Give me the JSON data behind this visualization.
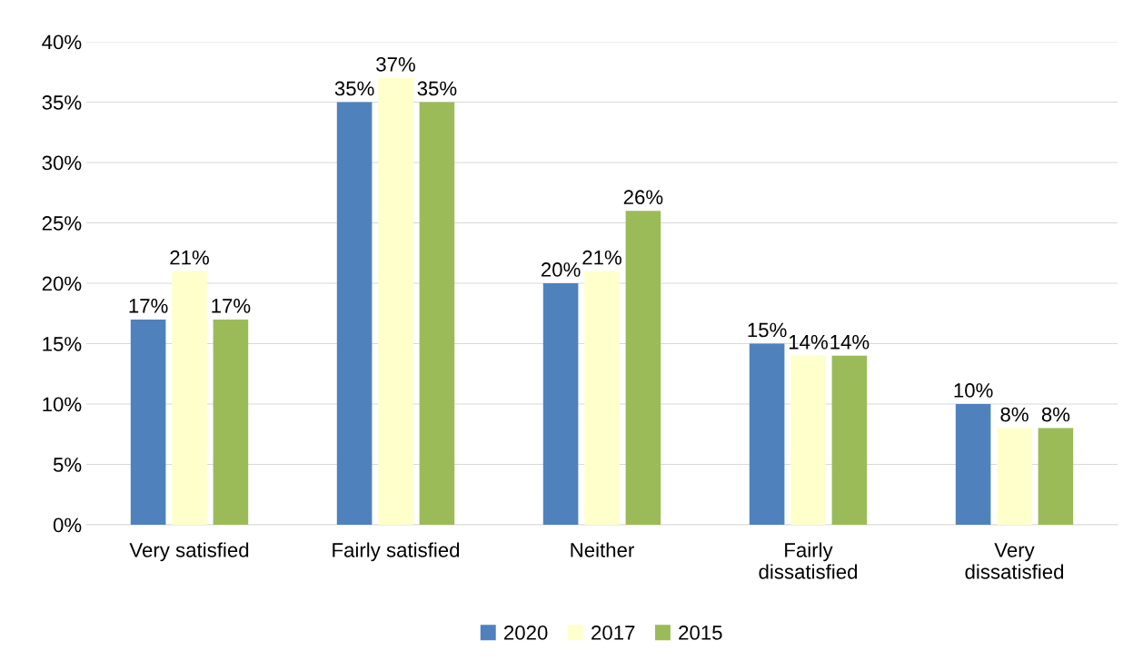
{
  "chart_data": {
    "type": "bar",
    "categories": [
      "Very satisfied",
      "Fairly satisfied",
      "Neither",
      "Fairly\ndissatisfied",
      "Very\ndissatisfied"
    ],
    "series": [
      {
        "name": "2020",
        "color": "#4f81bd",
        "values": [
          17,
          35,
          20,
          15,
          10
        ],
        "value_labels": [
          "17%",
          "35%",
          "20%",
          "15%",
          "10%"
        ]
      },
      {
        "name": "2017",
        "color": "#ffffcc",
        "values": [
          21,
          37,
          21,
          14,
          8
        ],
        "value_labels": [
          "21%",
          "37%",
          "21%",
          "14%",
          "8%"
        ]
      },
      {
        "name": "2015",
        "color": "#9bbb59",
        "values": [
          17,
          35,
          26,
          14,
          8
        ],
        "value_labels": [
          "17%",
          "35%",
          "26%",
          "14%",
          "8%"
        ]
      }
    ],
    "ylim": [
      0,
      40
    ],
    "yticks": [
      {
        "value": 0,
        "label": "0%"
      },
      {
        "value": 5,
        "label": "5%"
      },
      {
        "value": 10,
        "label": "10%"
      },
      {
        "value": 15,
        "label": "15%"
      },
      {
        "value": 20,
        "label": "20%"
      },
      {
        "value": 25,
        "label": "25%"
      },
      {
        "value": 30,
        "label": "30%"
      },
      {
        "value": 35,
        "label": "35%"
      },
      {
        "value": 40,
        "label": "40%"
      }
    ],
    "grid": "y",
    "legend": "bottom"
  }
}
